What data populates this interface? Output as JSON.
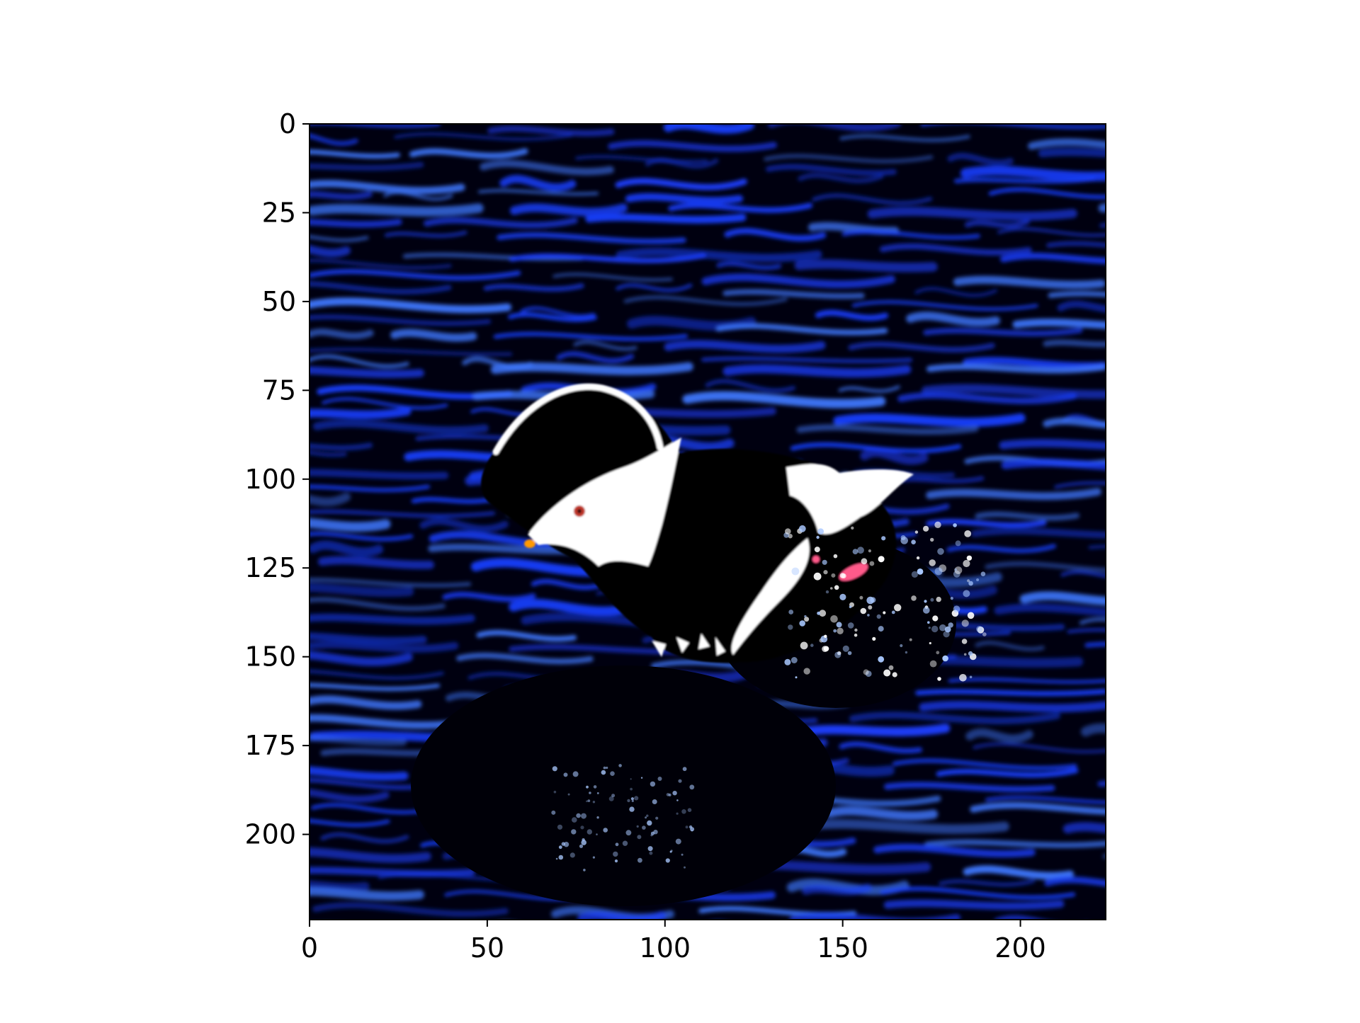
{
  "image_content": "Color-manipulated photograph of a duck (black body with white head patch and white wing patch, red eye, small orange bill) swimming in dark water with bright blue rippled highlights; splash of white/blue droplets to the right of the duck.",
  "colors": {
    "water_dark": "#000010",
    "water_highlight": "#1a3fff",
    "water_bright": "#3f78ff",
    "duck_body": "#000000",
    "duck_white": "#ffffff",
    "eye": "#c0392b",
    "bill": "#ff9900",
    "foot": "#ff5a8a",
    "splash": "#a9c8ff"
  },
  "axes": {
    "x_ticks": [
      "0",
      "50",
      "100",
      "150",
      "200"
    ],
    "y_ticks": [
      "0",
      "25",
      "50",
      "75",
      "100",
      "125",
      "150",
      "175",
      "200"
    ],
    "xlim": [
      0,
      224
    ],
    "ylim": [
      224,
      0
    ],
    "grid": false
  }
}
